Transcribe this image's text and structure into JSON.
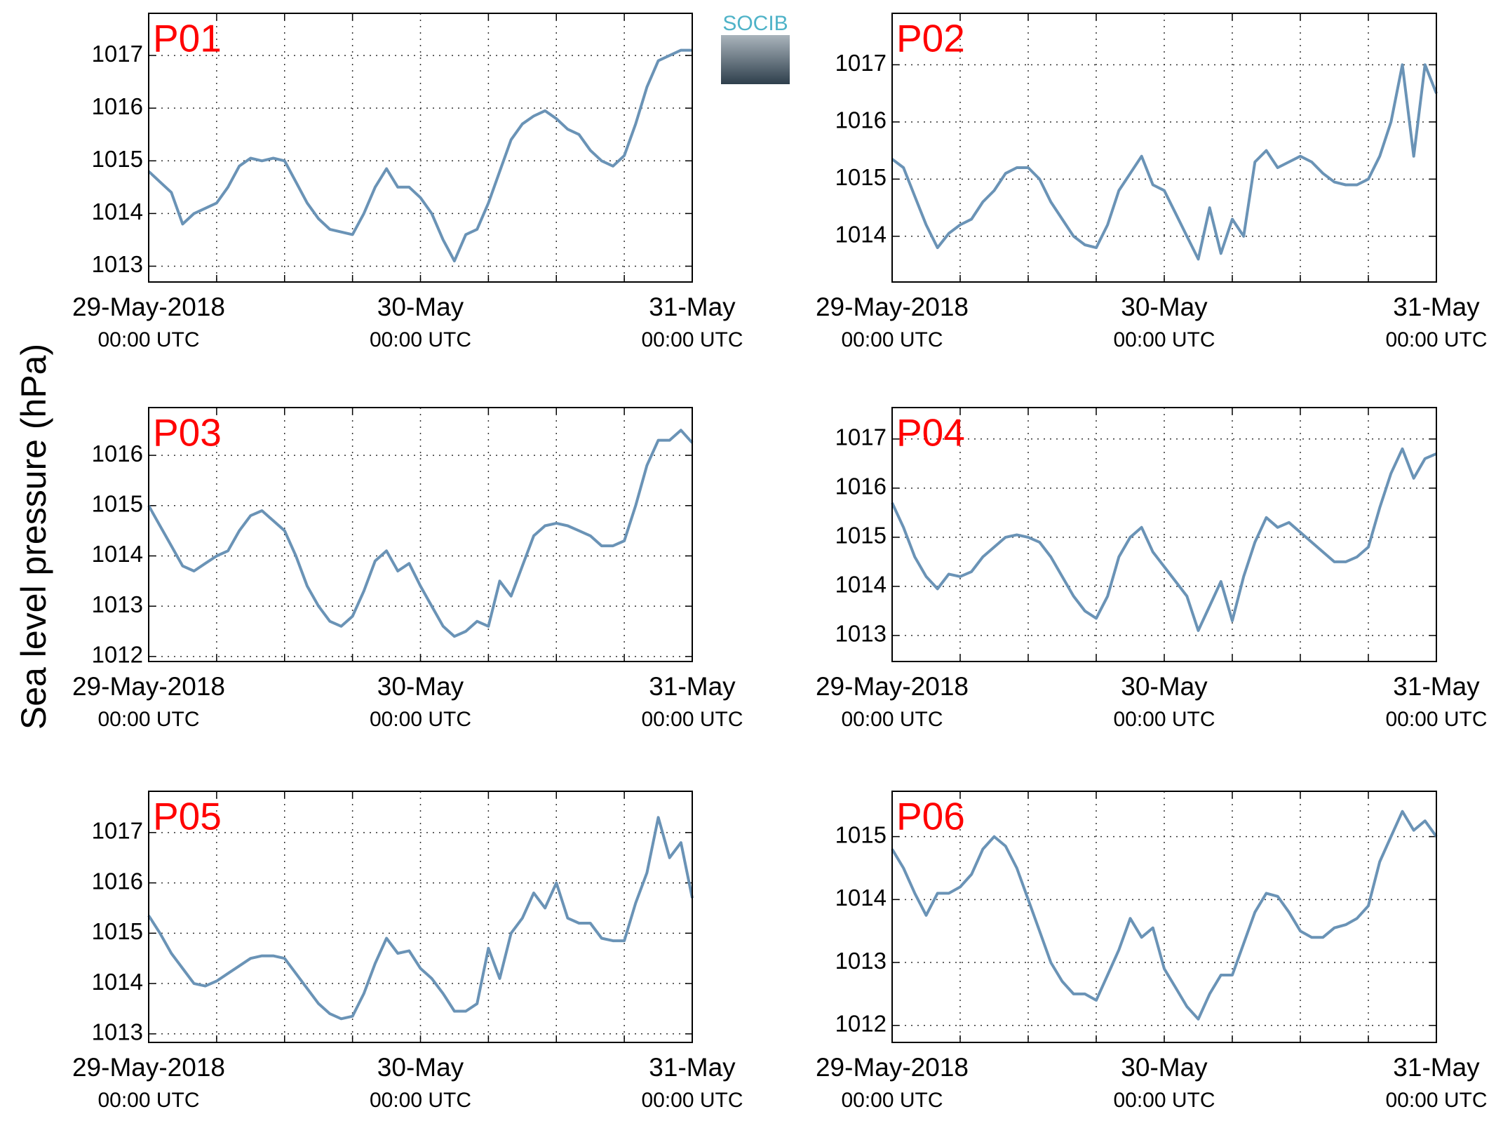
{
  "ylabel": "Sea level pressure (hPa)",
  "logo": "SOCIB",
  "chart_data": [
    {
      "type": "line",
      "title": "P01",
      "color": "#6a93b6",
      "x": [
        0,
        1,
        2,
        3,
        4,
        5,
        6,
        7,
        8,
        9,
        10,
        11,
        12,
        13,
        14,
        15,
        16,
        17,
        18,
        19,
        20,
        21,
        22,
        23,
        24,
        25,
        26,
        27,
        28,
        29,
        30,
        31,
        32,
        33,
        34,
        35,
        36,
        37,
        38,
        39,
        40,
        41,
        42,
        43,
        44,
        45,
        46,
        47,
        48
      ],
      "values": [
        1014.8,
        1014.6,
        1014.4,
        1013.8,
        1014.0,
        1014.1,
        1014.2,
        1014.5,
        1014.9,
        1015.05,
        1015.0,
        1015.05,
        1015.0,
        1014.6,
        1014.2,
        1013.9,
        1013.7,
        1013.65,
        1013.6,
        1014.0,
        1014.5,
        1014.85,
        1014.5,
        1014.5,
        1014.3,
        1014.0,
        1013.5,
        1013.1,
        1013.6,
        1013.7,
        1014.2,
        1014.8,
        1015.4,
        1015.7,
        1015.85,
        1015.95,
        1015.8,
        1015.6,
        1015.5,
        1015.2,
        1015.0,
        1014.9,
        1015.1,
        1015.7,
        1016.4,
        1016.9,
        1017.0,
        1017.1,
        1017.1
      ],
      "xlim": [
        0,
        48
      ],
      "xticks": [
        {
          "value": 0,
          "label": "29-May-2018"
        },
        {
          "value": 24,
          "label": "30-May"
        },
        {
          "value": 48,
          "label": "31-May"
        }
      ],
      "xtick_sublabels": [
        "00:00 UTC",
        "00:00 UTC",
        "00:00 UTC"
      ],
      "xticks_minor": [
        6,
        12,
        18,
        30,
        36,
        42
      ],
      "ylim": [
        1012.7,
        1017.8
      ],
      "yticks": [
        1013,
        1014,
        1015,
        1016,
        1017
      ],
      "grid": true
    },
    {
      "type": "line",
      "title": "P02",
      "color": "#6a93b6",
      "x": [
        0,
        1,
        2,
        3,
        4,
        5,
        6,
        7,
        8,
        9,
        10,
        11,
        12,
        13,
        14,
        15,
        16,
        17,
        18,
        19,
        20,
        21,
        22,
        23,
        24,
        25,
        26,
        27,
        28,
        29,
        30,
        31,
        32,
        33,
        34,
        35,
        36,
        37,
        38,
        39,
        40,
        41,
        42,
        43,
        44,
        45,
        46,
        47,
        48
      ],
      "values": [
        1015.35,
        1015.2,
        1014.7,
        1014.2,
        1013.8,
        1014.05,
        1014.2,
        1014.3,
        1014.6,
        1014.8,
        1015.1,
        1015.2,
        1015.2,
        1015.0,
        1014.6,
        1014.3,
        1014.0,
        1013.85,
        1013.8,
        1014.2,
        1014.8,
        1015.1,
        1015.4,
        1014.9,
        1014.8,
        1014.4,
        1014.0,
        1013.6,
        1014.5,
        1013.7,
        1014.3,
        1014.0,
        1015.3,
        1015.5,
        1015.2,
        1015.3,
        1015.4,
        1015.3,
        1015.1,
        1014.95,
        1014.9,
        1014.9,
        1015.0,
        1015.4,
        1016.0,
        1017.0,
        1015.4,
        1017.0,
        1016.5
      ],
      "xlim": [
        0,
        48
      ],
      "xticks": [
        {
          "value": 0,
          "label": "29-May-2018"
        },
        {
          "value": 24,
          "label": "30-May"
        },
        {
          "value": 48,
          "label": "31-May"
        }
      ],
      "xtick_sublabels": [
        "00:00 UTC",
        "00:00 UTC",
        "00:00 UTC"
      ],
      "xticks_minor": [
        6,
        12,
        18,
        30,
        36,
        42
      ],
      "ylim": [
        1013.2,
        1017.9
      ],
      "yticks": [
        1014,
        1015,
        1016,
        1017
      ],
      "grid": true
    },
    {
      "type": "line",
      "title": "P03",
      "color": "#6a93b6",
      "x": [
        0,
        1,
        2,
        3,
        4,
        5,
        6,
        7,
        8,
        9,
        10,
        11,
        12,
        13,
        14,
        15,
        16,
        17,
        18,
        19,
        20,
        21,
        22,
        23,
        24,
        25,
        26,
        27,
        28,
        29,
        30,
        31,
        32,
        33,
        34,
        35,
        36,
        37,
        38,
        39,
        40,
        41,
        42,
        43,
        44,
        45,
        46,
        47,
        48
      ],
      "values": [
        1015.0,
        1014.6,
        1014.2,
        1013.8,
        1013.7,
        1013.85,
        1014.0,
        1014.1,
        1014.5,
        1014.8,
        1014.9,
        1014.7,
        1014.5,
        1014.0,
        1013.4,
        1013.0,
        1012.7,
        1012.6,
        1012.8,
        1013.3,
        1013.9,
        1014.1,
        1013.7,
        1013.85,
        1013.4,
        1013.0,
        1012.6,
        1012.4,
        1012.5,
        1012.7,
        1012.6,
        1013.5,
        1013.2,
        1013.8,
        1014.4,
        1014.6,
        1014.65,
        1014.6,
        1014.5,
        1014.4,
        1014.2,
        1014.2,
        1014.3,
        1015.0,
        1015.8,
        1016.3,
        1016.3,
        1016.5,
        1016.25
      ],
      "xlim": [
        0,
        48
      ],
      "xticks": [
        {
          "value": 0,
          "label": "29-May-2018"
        },
        {
          "value": 24,
          "label": "30-May"
        },
        {
          "value": 48,
          "label": "31-May"
        }
      ],
      "xtick_sublabels": [
        "00:00 UTC",
        "00:00 UTC",
        "00:00 UTC"
      ],
      "xticks_minor": [
        6,
        12,
        18,
        30,
        36,
        42
      ],
      "ylim": [
        1011.9,
        1016.95
      ],
      "yticks": [
        1012,
        1013,
        1014,
        1015,
        1016
      ],
      "grid": true
    },
    {
      "type": "line",
      "title": "P04",
      "color": "#6a93b6",
      "x": [
        0,
        1,
        2,
        3,
        4,
        5,
        6,
        7,
        8,
        9,
        10,
        11,
        12,
        13,
        14,
        15,
        16,
        17,
        18,
        19,
        20,
        21,
        22,
        23,
        24,
        25,
        26,
        27,
        28,
        29,
        30,
        31,
        32,
        33,
        34,
        35,
        36,
        37,
        38,
        39,
        40,
        41,
        42,
        43,
        44,
        45,
        46,
        47,
        48
      ],
      "values": [
        1015.7,
        1015.2,
        1014.6,
        1014.2,
        1013.95,
        1014.25,
        1014.2,
        1014.3,
        1014.6,
        1014.8,
        1015.0,
        1015.05,
        1015.0,
        1014.9,
        1014.6,
        1014.2,
        1013.8,
        1013.5,
        1013.35,
        1013.8,
        1014.6,
        1015.0,
        1015.2,
        1014.7,
        1014.4,
        1014.1,
        1013.8,
        1013.1,
        1013.6,
        1014.1,
        1013.3,
        1014.2,
        1014.9,
        1015.4,
        1015.2,
        1015.3,
        1015.1,
        1014.9,
        1014.7,
        1014.5,
        1014.5,
        1014.6,
        1014.8,
        1015.6,
        1016.3,
        1016.8,
        1016.2,
        1016.6,
        1016.7
      ],
      "xlim": [
        0,
        48
      ],
      "xticks": [
        {
          "value": 0,
          "label": "29-May-2018"
        },
        {
          "value": 24,
          "label": "30-May"
        },
        {
          "value": 48,
          "label": "31-May"
        }
      ],
      "xtick_sublabels": [
        "00:00 UTC",
        "00:00 UTC",
        "00:00 UTC"
      ],
      "xticks_minor": [
        6,
        12,
        18,
        30,
        36,
        42
      ],
      "ylim": [
        1012.47,
        1017.64
      ],
      "yticks": [
        1013,
        1014,
        1015,
        1016,
        1017
      ],
      "grid": true
    },
    {
      "type": "line",
      "title": "P05",
      "color": "#6a93b6",
      "x": [
        0,
        1,
        2,
        3,
        4,
        5,
        6,
        7,
        8,
        9,
        10,
        11,
        12,
        13,
        14,
        15,
        16,
        17,
        18,
        19,
        20,
        21,
        22,
        23,
        24,
        25,
        26,
        27,
        28,
        29,
        30,
        31,
        32,
        33,
        34,
        35,
        36,
        37,
        38,
        39,
        40,
        41,
        42,
        43,
        44,
        45,
        46,
        47,
        48
      ],
      "values": [
        1015.35,
        1015.0,
        1014.6,
        1014.3,
        1014.0,
        1013.95,
        1014.05,
        1014.2,
        1014.35,
        1014.5,
        1014.55,
        1014.55,
        1014.5,
        1014.2,
        1013.9,
        1013.6,
        1013.4,
        1013.3,
        1013.35,
        1013.8,
        1014.4,
        1014.9,
        1014.6,
        1014.65,
        1014.3,
        1014.1,
        1013.8,
        1013.45,
        1013.45,
        1013.6,
        1014.7,
        1014.1,
        1015.0,
        1015.3,
        1015.8,
        1015.5,
        1016.0,
        1015.3,
        1015.2,
        1015.2,
        1014.9,
        1014.85,
        1014.85,
        1015.6,
        1016.2,
        1017.3,
        1016.5,
        1016.8,
        1015.7
      ],
      "xlim": [
        0,
        48
      ],
      "xticks": [
        {
          "value": 0,
          "label": "29-May-2018"
        },
        {
          "value": 24,
          "label": "30-May"
        },
        {
          "value": 48,
          "label": "31-May"
        }
      ],
      "xtick_sublabels": [
        "00:00 UTC",
        "00:00 UTC",
        "00:00 UTC"
      ],
      "xticks_minor": [
        6,
        12,
        18,
        30,
        36,
        42
      ],
      "ylim": [
        1012.83,
        1017.82
      ],
      "yticks": [
        1013,
        1014,
        1015,
        1016,
        1017
      ],
      "grid": true
    },
    {
      "type": "line",
      "title": "P06",
      "color": "#6a93b6",
      "x": [
        0,
        1,
        2,
        3,
        4,
        5,
        6,
        7,
        8,
        9,
        10,
        11,
        12,
        13,
        14,
        15,
        16,
        17,
        18,
        19,
        20,
        21,
        22,
        23,
        24,
        25,
        26,
        27,
        28,
        29,
        30,
        31,
        32,
        33,
        34,
        35,
        36,
        37,
        38,
        39,
        40,
        41,
        42,
        43,
        44,
        45,
        46,
        47,
        48
      ],
      "values": [
        1014.8,
        1014.5,
        1014.1,
        1013.75,
        1014.1,
        1014.1,
        1014.2,
        1014.4,
        1014.8,
        1015.0,
        1014.85,
        1014.5,
        1014.0,
        1013.5,
        1013.0,
        1012.7,
        1012.5,
        1012.5,
        1012.4,
        1012.8,
        1013.2,
        1013.7,
        1013.4,
        1013.55,
        1012.9,
        1012.6,
        1012.3,
        1012.1,
        1012.5,
        1012.8,
        1012.8,
        1013.3,
        1013.8,
        1014.1,
        1014.05,
        1013.8,
        1013.5,
        1013.4,
        1013.4,
        1013.55,
        1013.6,
        1013.7,
        1013.9,
        1014.6,
        1015.0,
        1015.4,
        1015.1,
        1015.25,
        1015.0
      ],
      "xlim": [
        0,
        48
      ],
      "xticks": [
        {
          "value": 0,
          "label": "29-May-2018"
        },
        {
          "value": 24,
          "label": "30-May"
        },
        {
          "value": 48,
          "label": "31-May"
        }
      ],
      "xtick_sublabels": [
        "00:00 UTC",
        "00:00 UTC",
        "00:00 UTC"
      ],
      "xticks_minor": [
        6,
        12,
        18,
        30,
        36,
        42
      ],
      "ylim": [
        1011.73,
        1015.72
      ],
      "yticks": [
        1012,
        1013,
        1014,
        1015
      ],
      "grid": true
    }
  ]
}
